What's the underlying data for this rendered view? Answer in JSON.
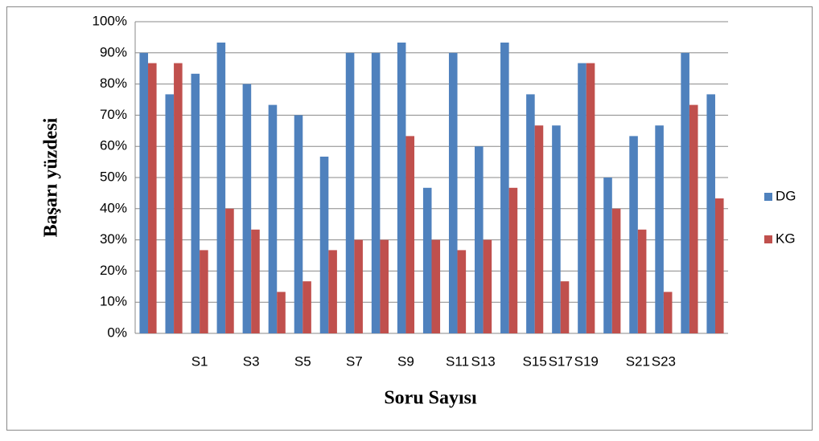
{
  "chart_data": {
    "type": "bar",
    "x_label": "Soru Sayısı",
    "y_label": "Başarı yüzdesi",
    "categories": [
      null,
      null,
      "S1",
      null,
      "S3",
      null,
      "S5",
      null,
      "S7",
      null,
      "S9",
      null,
      "S11",
      "S13",
      null,
      "S15",
      "S17",
      "S19",
      null,
      "S21",
      "S23",
      null,
      null
    ],
    "series": [
      {
        "name": "DG",
        "color": "#4f81bd",
        "values": [
          90,
          76.7,
          83.3,
          93.3,
          80,
          73.3,
          70,
          56.7,
          90,
          90,
          93.3,
          46.7,
          90,
          60,
          93.3,
          76.7,
          66.7,
          86.7,
          50,
          63.3,
          66.7,
          90,
          76.7
        ]
      },
      {
        "name": "KG",
        "color": "#c0504d",
        "values": [
          86.7,
          86.7,
          26.7,
          40,
          33.3,
          13.3,
          16.7,
          26.7,
          30,
          30,
          63.3,
          30,
          26.7,
          30,
          46.7,
          66.7,
          16.7,
          86.7,
          40,
          33.3,
          13.3,
          73.3,
          43.3
        ]
      }
    ],
    "ylim": [
      0,
      100
    ],
    "yticks": [
      {
        "value": 0,
        "label": "0%"
      },
      {
        "value": 10,
        "label": "10%"
      },
      {
        "value": 20,
        "label": "20%"
      },
      {
        "value": 30,
        "label": "30%"
      },
      {
        "value": 40,
        "label": "40%"
      },
      {
        "value": 50,
        "label": "50%"
      },
      {
        "value": 60,
        "label": "60%"
      },
      {
        "value": 70,
        "label": "70%"
      },
      {
        "value": 80,
        "label": "80%"
      },
      {
        "value": 90,
        "label": "90%"
      },
      {
        "value": 100,
        "label": "100%"
      }
    ],
    "grid": true,
    "legend": "right"
  }
}
